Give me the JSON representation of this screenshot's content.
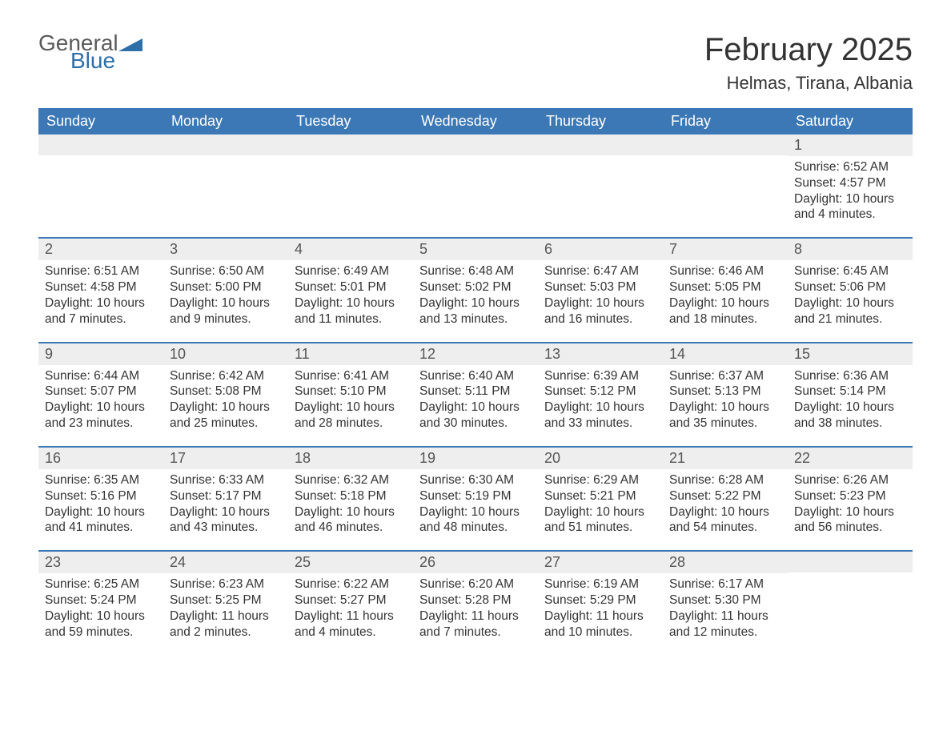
{
  "logo": {
    "word1": "General",
    "word2": "Blue",
    "accent_color": "#2f6fa7",
    "text_color": "#5a5a5a"
  },
  "title": "February 2025",
  "location": "Helmas, Tirana, Albania",
  "colors": {
    "header_bg": "#3b78b5",
    "header_text": "#ffffff",
    "daynum_bg": "#eeeeee",
    "body_text": "#333333",
    "page_bg": "#ffffff",
    "rule": "#3b78b5"
  },
  "typography": {
    "title_fontsize": 40,
    "location_fontsize": 22,
    "dayheader_fontsize": 18,
    "daynum_fontsize": 18,
    "body_fontsize": 15.5,
    "font_family": "Arial"
  },
  "layout": {
    "columns": 7,
    "rows": 5,
    "first_day_column_index": 6
  },
  "day_headers": [
    "Sunday",
    "Monday",
    "Tuesday",
    "Wednesday",
    "Thursday",
    "Friday",
    "Saturday"
  ],
  "weeks": [
    [
      null,
      null,
      null,
      null,
      null,
      null,
      {
        "n": "1",
        "sunrise": "Sunrise: 6:52 AM",
        "sunset": "Sunset: 4:57 PM",
        "daylight": "Daylight: 10 hours and 4 minutes."
      }
    ],
    [
      {
        "n": "2",
        "sunrise": "Sunrise: 6:51 AM",
        "sunset": "Sunset: 4:58 PM",
        "daylight": "Daylight: 10 hours and 7 minutes."
      },
      {
        "n": "3",
        "sunrise": "Sunrise: 6:50 AM",
        "sunset": "Sunset: 5:00 PM",
        "daylight": "Daylight: 10 hours and 9 minutes."
      },
      {
        "n": "4",
        "sunrise": "Sunrise: 6:49 AM",
        "sunset": "Sunset: 5:01 PM",
        "daylight": "Daylight: 10 hours and 11 minutes."
      },
      {
        "n": "5",
        "sunrise": "Sunrise: 6:48 AM",
        "sunset": "Sunset: 5:02 PM",
        "daylight": "Daylight: 10 hours and 13 minutes."
      },
      {
        "n": "6",
        "sunrise": "Sunrise: 6:47 AM",
        "sunset": "Sunset: 5:03 PM",
        "daylight": "Daylight: 10 hours and 16 minutes."
      },
      {
        "n": "7",
        "sunrise": "Sunrise: 6:46 AM",
        "sunset": "Sunset: 5:05 PM",
        "daylight": "Daylight: 10 hours and 18 minutes."
      },
      {
        "n": "8",
        "sunrise": "Sunrise: 6:45 AM",
        "sunset": "Sunset: 5:06 PM",
        "daylight": "Daylight: 10 hours and 21 minutes."
      }
    ],
    [
      {
        "n": "9",
        "sunrise": "Sunrise: 6:44 AM",
        "sunset": "Sunset: 5:07 PM",
        "daylight": "Daylight: 10 hours and 23 minutes."
      },
      {
        "n": "10",
        "sunrise": "Sunrise: 6:42 AM",
        "sunset": "Sunset: 5:08 PM",
        "daylight": "Daylight: 10 hours and 25 minutes."
      },
      {
        "n": "11",
        "sunrise": "Sunrise: 6:41 AM",
        "sunset": "Sunset: 5:10 PM",
        "daylight": "Daylight: 10 hours and 28 minutes."
      },
      {
        "n": "12",
        "sunrise": "Sunrise: 6:40 AM",
        "sunset": "Sunset: 5:11 PM",
        "daylight": "Daylight: 10 hours and 30 minutes."
      },
      {
        "n": "13",
        "sunrise": "Sunrise: 6:39 AM",
        "sunset": "Sunset: 5:12 PM",
        "daylight": "Daylight: 10 hours and 33 minutes."
      },
      {
        "n": "14",
        "sunrise": "Sunrise: 6:37 AM",
        "sunset": "Sunset: 5:13 PM",
        "daylight": "Daylight: 10 hours and 35 minutes."
      },
      {
        "n": "15",
        "sunrise": "Sunrise: 6:36 AM",
        "sunset": "Sunset: 5:14 PM",
        "daylight": "Daylight: 10 hours and 38 minutes."
      }
    ],
    [
      {
        "n": "16",
        "sunrise": "Sunrise: 6:35 AM",
        "sunset": "Sunset: 5:16 PM",
        "daylight": "Daylight: 10 hours and 41 minutes."
      },
      {
        "n": "17",
        "sunrise": "Sunrise: 6:33 AM",
        "sunset": "Sunset: 5:17 PM",
        "daylight": "Daylight: 10 hours and 43 minutes."
      },
      {
        "n": "18",
        "sunrise": "Sunrise: 6:32 AM",
        "sunset": "Sunset: 5:18 PM",
        "daylight": "Daylight: 10 hours and 46 minutes."
      },
      {
        "n": "19",
        "sunrise": "Sunrise: 6:30 AM",
        "sunset": "Sunset: 5:19 PM",
        "daylight": "Daylight: 10 hours and 48 minutes."
      },
      {
        "n": "20",
        "sunrise": "Sunrise: 6:29 AM",
        "sunset": "Sunset: 5:21 PM",
        "daylight": "Daylight: 10 hours and 51 minutes."
      },
      {
        "n": "21",
        "sunrise": "Sunrise: 6:28 AM",
        "sunset": "Sunset: 5:22 PM",
        "daylight": "Daylight: 10 hours and 54 minutes."
      },
      {
        "n": "22",
        "sunrise": "Sunrise: 6:26 AM",
        "sunset": "Sunset: 5:23 PM",
        "daylight": "Daylight: 10 hours and 56 minutes."
      }
    ],
    [
      {
        "n": "23",
        "sunrise": "Sunrise: 6:25 AM",
        "sunset": "Sunset: 5:24 PM",
        "daylight": "Daylight: 10 hours and 59 minutes."
      },
      {
        "n": "24",
        "sunrise": "Sunrise: 6:23 AM",
        "sunset": "Sunset: 5:25 PM",
        "daylight": "Daylight: 11 hours and 2 minutes."
      },
      {
        "n": "25",
        "sunrise": "Sunrise: 6:22 AM",
        "sunset": "Sunset: 5:27 PM",
        "daylight": "Daylight: 11 hours and 4 minutes."
      },
      {
        "n": "26",
        "sunrise": "Sunrise: 6:20 AM",
        "sunset": "Sunset: 5:28 PM",
        "daylight": "Daylight: 11 hours and 7 minutes."
      },
      {
        "n": "27",
        "sunrise": "Sunrise: 6:19 AM",
        "sunset": "Sunset: 5:29 PM",
        "daylight": "Daylight: 11 hours and 10 minutes."
      },
      {
        "n": "28",
        "sunrise": "Sunrise: 6:17 AM",
        "sunset": "Sunset: 5:30 PM",
        "daylight": "Daylight: 11 hours and 12 minutes."
      },
      null
    ]
  ]
}
